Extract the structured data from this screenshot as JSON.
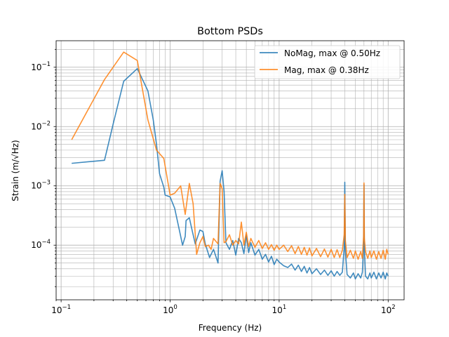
{
  "chart_data": {
    "type": "line",
    "title": "Bottom PSDs",
    "xlabel": "Frequency (Hz)",
    "ylabel": "Strain (m/√Hz)",
    "xscale": "log",
    "yscale": "log",
    "xlim": [
      0.09,
      140
    ],
    "ylim": [
      1.2e-05,
      0.28
    ],
    "xticks": [
      {
        "value": 0.1,
        "base": "10",
        "exp": "−1"
      },
      {
        "value": 1,
        "base": "10",
        "exp": "0"
      },
      {
        "value": 10,
        "base": "10",
        "exp": "1"
      },
      {
        "value": 100,
        "base": "10",
        "exp": "2"
      }
    ],
    "yticks": [
      {
        "value": 0.0001,
        "base": "10",
        "exp": "−4"
      },
      {
        "value": 0.001,
        "base": "10",
        "exp": "−3"
      },
      {
        "value": 0.01,
        "base": "10",
        "exp": "−2"
      },
      {
        "value": 0.1,
        "base": "10",
        "exp": "−1"
      }
    ],
    "grid": "major and minor",
    "legend_position": "top-right",
    "series": [
      {
        "name": "NoMag, max @ 0.50Hz",
        "color": "#1f77b4",
        "points": [
          [
            0.125,
            0.0024
          ],
          [
            0.25,
            0.0027
          ],
          [
            0.3,
            0.011
          ],
          [
            0.375,
            0.058
          ],
          [
            0.5,
            0.095
          ],
          [
            0.625,
            0.04
          ],
          [
            0.7,
            0.013
          ],
          [
            0.75,
            0.005
          ],
          [
            0.8,
            0.0016
          ],
          [
            0.875,
            0.00095
          ],
          [
            0.9,
            0.0007
          ],
          [
            1.0,
            0.00065
          ],
          [
            1.1,
            0.00042
          ],
          [
            1.2,
            0.0002
          ],
          [
            1.3,
            0.0001
          ],
          [
            1.375,
            0.00014
          ],
          [
            1.4,
            0.00026
          ],
          [
            1.5,
            0.00029
          ],
          [
            1.6,
            0.00017
          ],
          [
            1.7,
            0.000105
          ],
          [
            1.875,
            0.00018
          ],
          [
            2.0,
            0.00017
          ],
          [
            2.1,
            0.000105
          ],
          [
            2.3,
            6.2e-05
          ],
          [
            2.5,
            8.5e-05
          ],
          [
            2.625,
            6.5e-05
          ],
          [
            2.75,
            5e-05
          ],
          [
            2.875,
            0.0012
          ],
          [
            3.0,
            0.0018
          ],
          [
            3.125,
            0.0008
          ],
          [
            3.25,
            0.00011
          ],
          [
            3.5,
            8.5e-05
          ],
          [
            3.75,
            0.00012
          ],
          [
            4.0,
            6.8e-05
          ],
          [
            4.25,
            0.00013
          ],
          [
            4.5,
            0.00011
          ],
          [
            4.75,
            7.2e-05
          ],
          [
            5.0,
            0.00015
          ],
          [
            5.25,
            7.5e-05
          ],
          [
            5.5,
            0.00011
          ],
          [
            6.0,
            6.8e-05
          ],
          [
            6.5,
            8.5e-05
          ],
          [
            7.0,
            5.8e-05
          ],
          [
            7.5,
            7e-05
          ],
          [
            8.0,
            5.2e-05
          ],
          [
            8.5,
            6.5e-05
          ],
          [
            9.0,
            4.7e-05
          ],
          [
            9.5,
            5.8e-05
          ],
          [
            10,
            5.2e-05
          ],
          [
            11,
            4.5e-05
          ],
          [
            12,
            4.2e-05
          ],
          [
            13,
            4.8e-05
          ],
          [
            14,
            3.8e-05
          ],
          [
            15,
            4.6e-05
          ],
          [
            16,
            3.6e-05
          ],
          [
            17,
            4.4e-05
          ],
          [
            18,
            3.4e-05
          ],
          [
            19,
            4.2e-05
          ],
          [
            20,
            3.3e-05
          ],
          [
            22,
            4e-05
          ],
          [
            24,
            3.2e-05
          ],
          [
            26,
            3.8e-05
          ],
          [
            28,
            3.1e-05
          ],
          [
            30,
            3.7e-05
          ],
          [
            32,
            3e-05
          ],
          [
            34,
            3.6e-05
          ],
          [
            36,
            3.1e-05
          ],
          [
            38,
            3.5e-05
          ],
          [
            39.5,
            9e-05
          ],
          [
            40,
            0.00115
          ],
          [
            40.5,
            8e-05
          ],
          [
            42,
            3.2e-05
          ],
          [
            45,
            2.8e-05
          ],
          [
            48,
            3.4e-05
          ],
          [
            50,
            2.7e-05
          ],
          [
            53,
            3.3e-05
          ],
          [
            56,
            2.8e-05
          ],
          [
            58,
            3.5e-05
          ],
          [
            59.5,
            0.0001
          ],
          [
            60,
            0.00105
          ],
          [
            60.5,
            9e-05
          ],
          [
            62,
            3e-05
          ],
          [
            65,
            2.7e-05
          ],
          [
            68,
            3.4e-05
          ],
          [
            70,
            2.8e-05
          ],
          [
            74,
            3.5e-05
          ],
          [
            78,
            2.7e-05
          ],
          [
            82,
            3.4e-05
          ],
          [
            86,
            2.8e-05
          ],
          [
            90,
            3.5e-05
          ],
          [
            94,
            2.7e-05
          ],
          [
            97,
            3.4e-05
          ],
          [
            100,
            3e-05
          ]
        ]
      },
      {
        "name": "Mag, max @ 0.38Hz",
        "color": "#ff7f0e",
        "points": [
          [
            0.125,
            0.006
          ],
          [
            0.25,
            0.062
          ],
          [
            0.375,
            0.18
          ],
          [
            0.5,
            0.13
          ],
          [
            0.625,
            0.013
          ],
          [
            0.75,
            0.004
          ],
          [
            0.875,
            0.0029
          ],
          [
            1.0,
            0.0007
          ],
          [
            1.1,
            0.00075
          ],
          [
            1.25,
            0.001
          ],
          [
            1.375,
            0.00033
          ],
          [
            1.5,
            0.0011
          ],
          [
            1.625,
            0.0005
          ],
          [
            1.75,
            7e-05
          ],
          [
            1.875,
            0.00011
          ],
          [
            2.0,
            0.00014
          ],
          [
            2.1,
            9.5e-05
          ],
          [
            2.25,
            0.0001
          ],
          [
            2.375,
            8.5e-05
          ],
          [
            2.5,
            0.00013
          ],
          [
            2.75,
            0.000105
          ],
          [
            2.875,
            0.0011
          ],
          [
            3.0,
            0.0009
          ],
          [
            3.125,
            0.00011
          ],
          [
            3.25,
            0.000115
          ],
          [
            3.5,
            0.00015
          ],
          [
            3.75,
            0.0001
          ],
          [
            4.0,
            0.00012
          ],
          [
            4.25,
            0.000105
          ],
          [
            4.5,
            0.000245
          ],
          [
            4.75,
            0.0001
          ],
          [
            5.0,
            0.000165
          ],
          [
            5.25,
            9.5e-05
          ],
          [
            5.5,
            0.00013
          ],
          [
            6.0,
            9.2e-05
          ],
          [
            6.5,
            0.00012
          ],
          [
            7.0,
            8.8e-05
          ],
          [
            7.5,
            0.00011
          ],
          [
            8.0,
            8.5e-05
          ],
          [
            8.5,
            0.000102
          ],
          [
            9.0,
            8.2e-05
          ],
          [
            9.5,
            0.0001
          ],
          [
            10,
            8.5e-05
          ],
          [
            11,
            0.0001
          ],
          [
            12,
            7.8e-05
          ],
          [
            13,
            9.8e-05
          ],
          [
            14,
            7.2e-05
          ],
          [
            15,
            9.5e-05
          ],
          [
            16,
            7e-05
          ],
          [
            17,
            9.2e-05
          ],
          [
            18,
            6.8e-05
          ],
          [
            19,
            9e-05
          ],
          [
            20,
            6.6e-05
          ],
          [
            22,
            8.8e-05
          ],
          [
            24,
            6.4e-05
          ],
          [
            26,
            8.6e-05
          ],
          [
            28,
            6.3e-05
          ],
          [
            30,
            8.5e-05
          ],
          [
            32,
            6.2e-05
          ],
          [
            34,
            8.4e-05
          ],
          [
            36,
            6.2e-05
          ],
          [
            38,
            8.2e-05
          ],
          [
            39.5,
            0.00015
          ],
          [
            40,
            0.00072
          ],
          [
            40.5,
            0.00012
          ],
          [
            42,
            6.2e-05
          ],
          [
            45,
            8.2e-05
          ],
          [
            48,
            6e-05
          ],
          [
            50,
            8e-05
          ],
          [
            53,
            5.8e-05
          ],
          [
            56,
            7.8e-05
          ],
          [
            58,
            6e-05
          ],
          [
            59.5,
            0.00014
          ],
          [
            60,
            0.00112
          ],
          [
            60.5,
            0.00013
          ],
          [
            62,
            7.8e-05
          ],
          [
            65,
            6e-05
          ],
          [
            68,
            8e-05
          ],
          [
            70,
            6.2e-05
          ],
          [
            74,
            8e-05
          ],
          [
            78,
            5.8e-05
          ],
          [
            82,
            7.8e-05
          ],
          [
            86,
            6e-05
          ],
          [
            90,
            8.2e-05
          ],
          [
            94,
            5.8e-05
          ],
          [
            97,
            8.5e-05
          ],
          [
            100,
            7e-05
          ]
        ]
      }
    ]
  }
}
